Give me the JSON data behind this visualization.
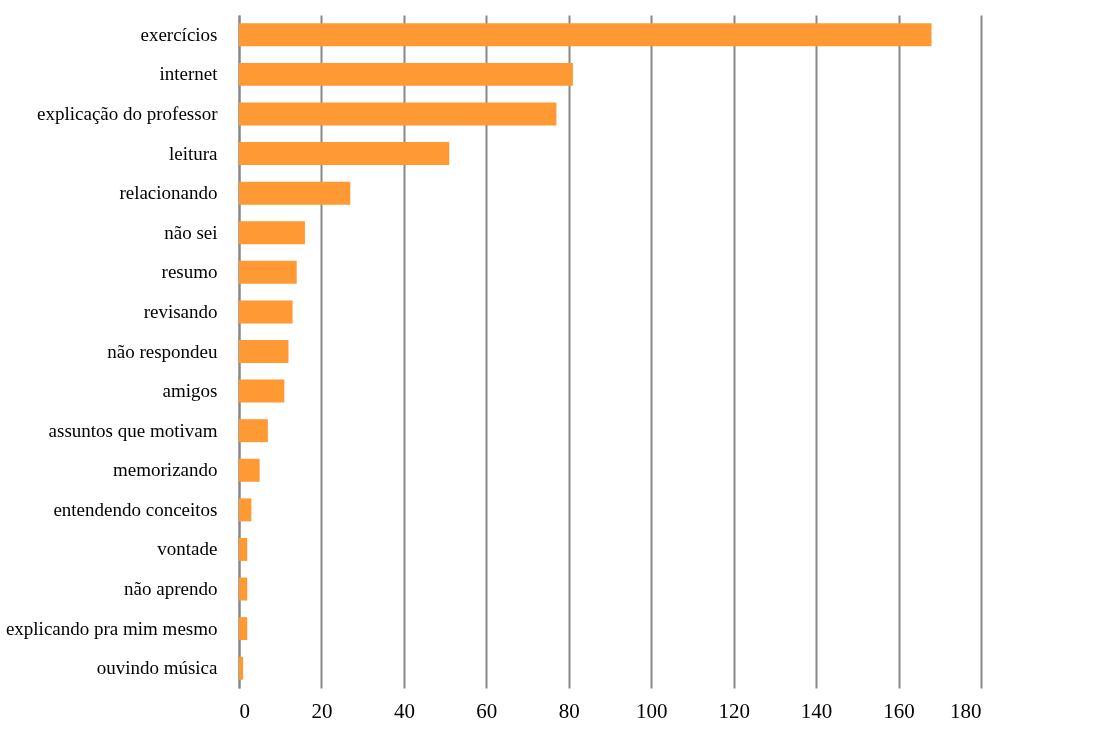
{
  "chart_data": {
    "type": "bar",
    "orientation": "horizontal",
    "categories": [
      "exercícios",
      "internet",
      "explicação do professor",
      "leitura",
      "relacionando",
      "não sei",
      "resumo",
      "revisando",
      "não respondeu",
      "amigos",
      "assuntos que motivam",
      "memorizando",
      "entendendo  conceitos",
      "vontade",
      "não aprendo",
      "explicando pra mim mesmo",
      "ouvindo música"
    ],
    "values": [
      168,
      81,
      77,
      51,
      27,
      16,
      14,
      13,
      12,
      11,
      7,
      5,
      3,
      2,
      2,
      2,
      1
    ],
    "color": "#ff9933",
    "xlim": [
      0,
      180
    ],
    "xticks": [
      0,
      20,
      40,
      60,
      80,
      100,
      120,
      140,
      160,
      180
    ],
    "grid": "x"
  }
}
